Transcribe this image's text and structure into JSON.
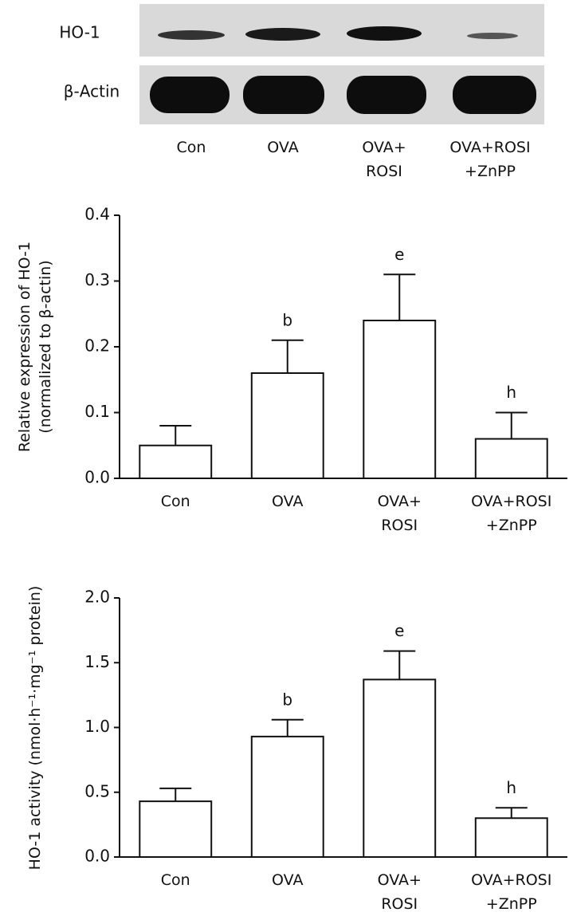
{
  "blot": {
    "rows": [
      "HO-1",
      "β-Actin"
    ],
    "lanes": [
      "Con",
      "OVA",
      "OVA+\nROSI",
      "OVA+ROSI\n+ZnPP"
    ]
  },
  "chart_data": [
    {
      "type": "bar",
      "ylabel": "Relative expression of HO-1\n(normalized to β-actin)",
      "categories": [
        "Con",
        "OVA",
        "OVA+\nROSI",
        "OVA+ROSI\n+ZnPP"
      ],
      "values": [
        0.05,
        0.16,
        0.24,
        0.06
      ],
      "errors": [
        0.03,
        0.05,
        0.07,
        0.04
      ],
      "annotations": [
        null,
        "b",
        "e",
        "h"
      ],
      "color": "#ffffff",
      "ylim": [
        0,
        0.4
      ],
      "yticks": [
        {
          "value": 0,
          "label": "0.0"
        },
        0.1,
        0.2,
        0.3,
        0.4
      ],
      "grid": false
    },
    {
      "type": "bar",
      "ylabel": "HO-1 activity (nmol·h⁻¹·mg⁻¹ protein)",
      "categories": [
        "Con",
        "OVA",
        "OVA+\nROSI",
        "OVA+ROSI\n+ZnPP"
      ],
      "values": [
        0.43,
        0.93,
        1.37,
        0.3
      ],
      "errors": [
        0.1,
        0.13,
        0.22,
        0.08
      ],
      "annotations": [
        null,
        "b",
        "e",
        "h"
      ],
      "color": "#ffffff",
      "ylim": [
        0,
        2
      ],
      "yticks": [
        {
          "value": 0,
          "label": "0.0"
        },
        0.5,
        {
          "value": 1,
          "label": "1.0"
        },
        1.5,
        {
          "value": 2,
          "label": "2.0"
        }
      ],
      "grid": false
    }
  ]
}
